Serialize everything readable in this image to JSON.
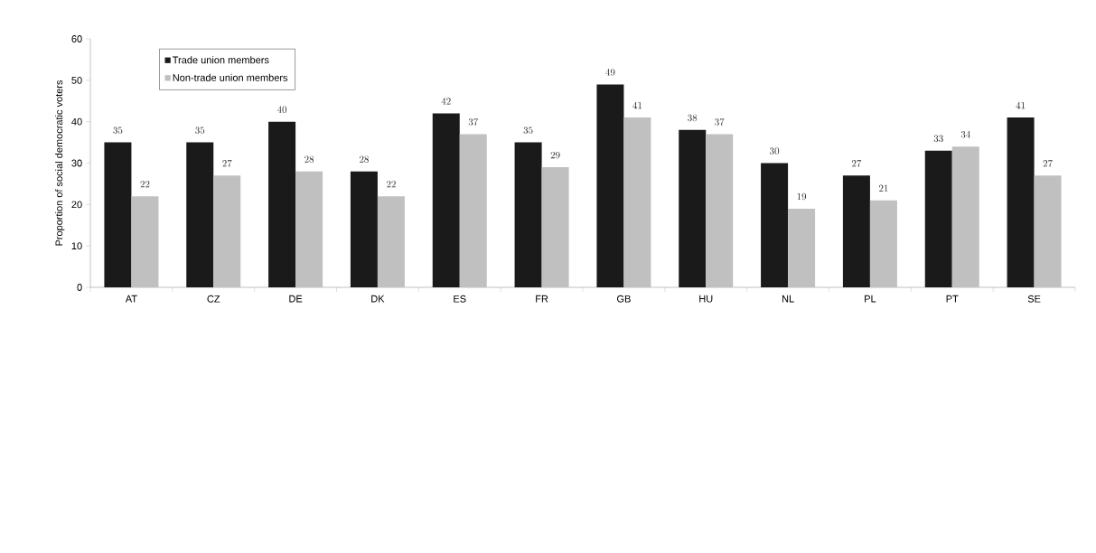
{
  "chart_data": {
    "type": "bar",
    "ylabel": "Proportion of social democratic voters",
    "categories": [
      "AT",
      "CZ",
      "DE",
      "DK",
      "ES",
      "FR",
      "GB",
      "HU",
      "NL",
      "PL",
      "PT",
      "SE"
    ],
    "series": [
      {
        "name": "Trade union members",
        "color": "#1a1a1a",
        "values": [
          35,
          35,
          40,
          28,
          42,
          35,
          49,
          38,
          30,
          27,
          33,
          41
        ]
      },
      {
        "name": "Non-trade union members",
        "color": "#c0c0c0",
        "values": [
          22,
          27,
          28,
          22,
          37,
          29,
          41,
          37,
          19,
          21,
          34,
          27
        ]
      }
    ],
    "ylim": [
      0,
      60
    ],
    "yticks": [
      0,
      10,
      20,
      30,
      40,
      50,
      60
    ],
    "data_labels": true,
    "legend": "top left",
    "grid": false
  }
}
